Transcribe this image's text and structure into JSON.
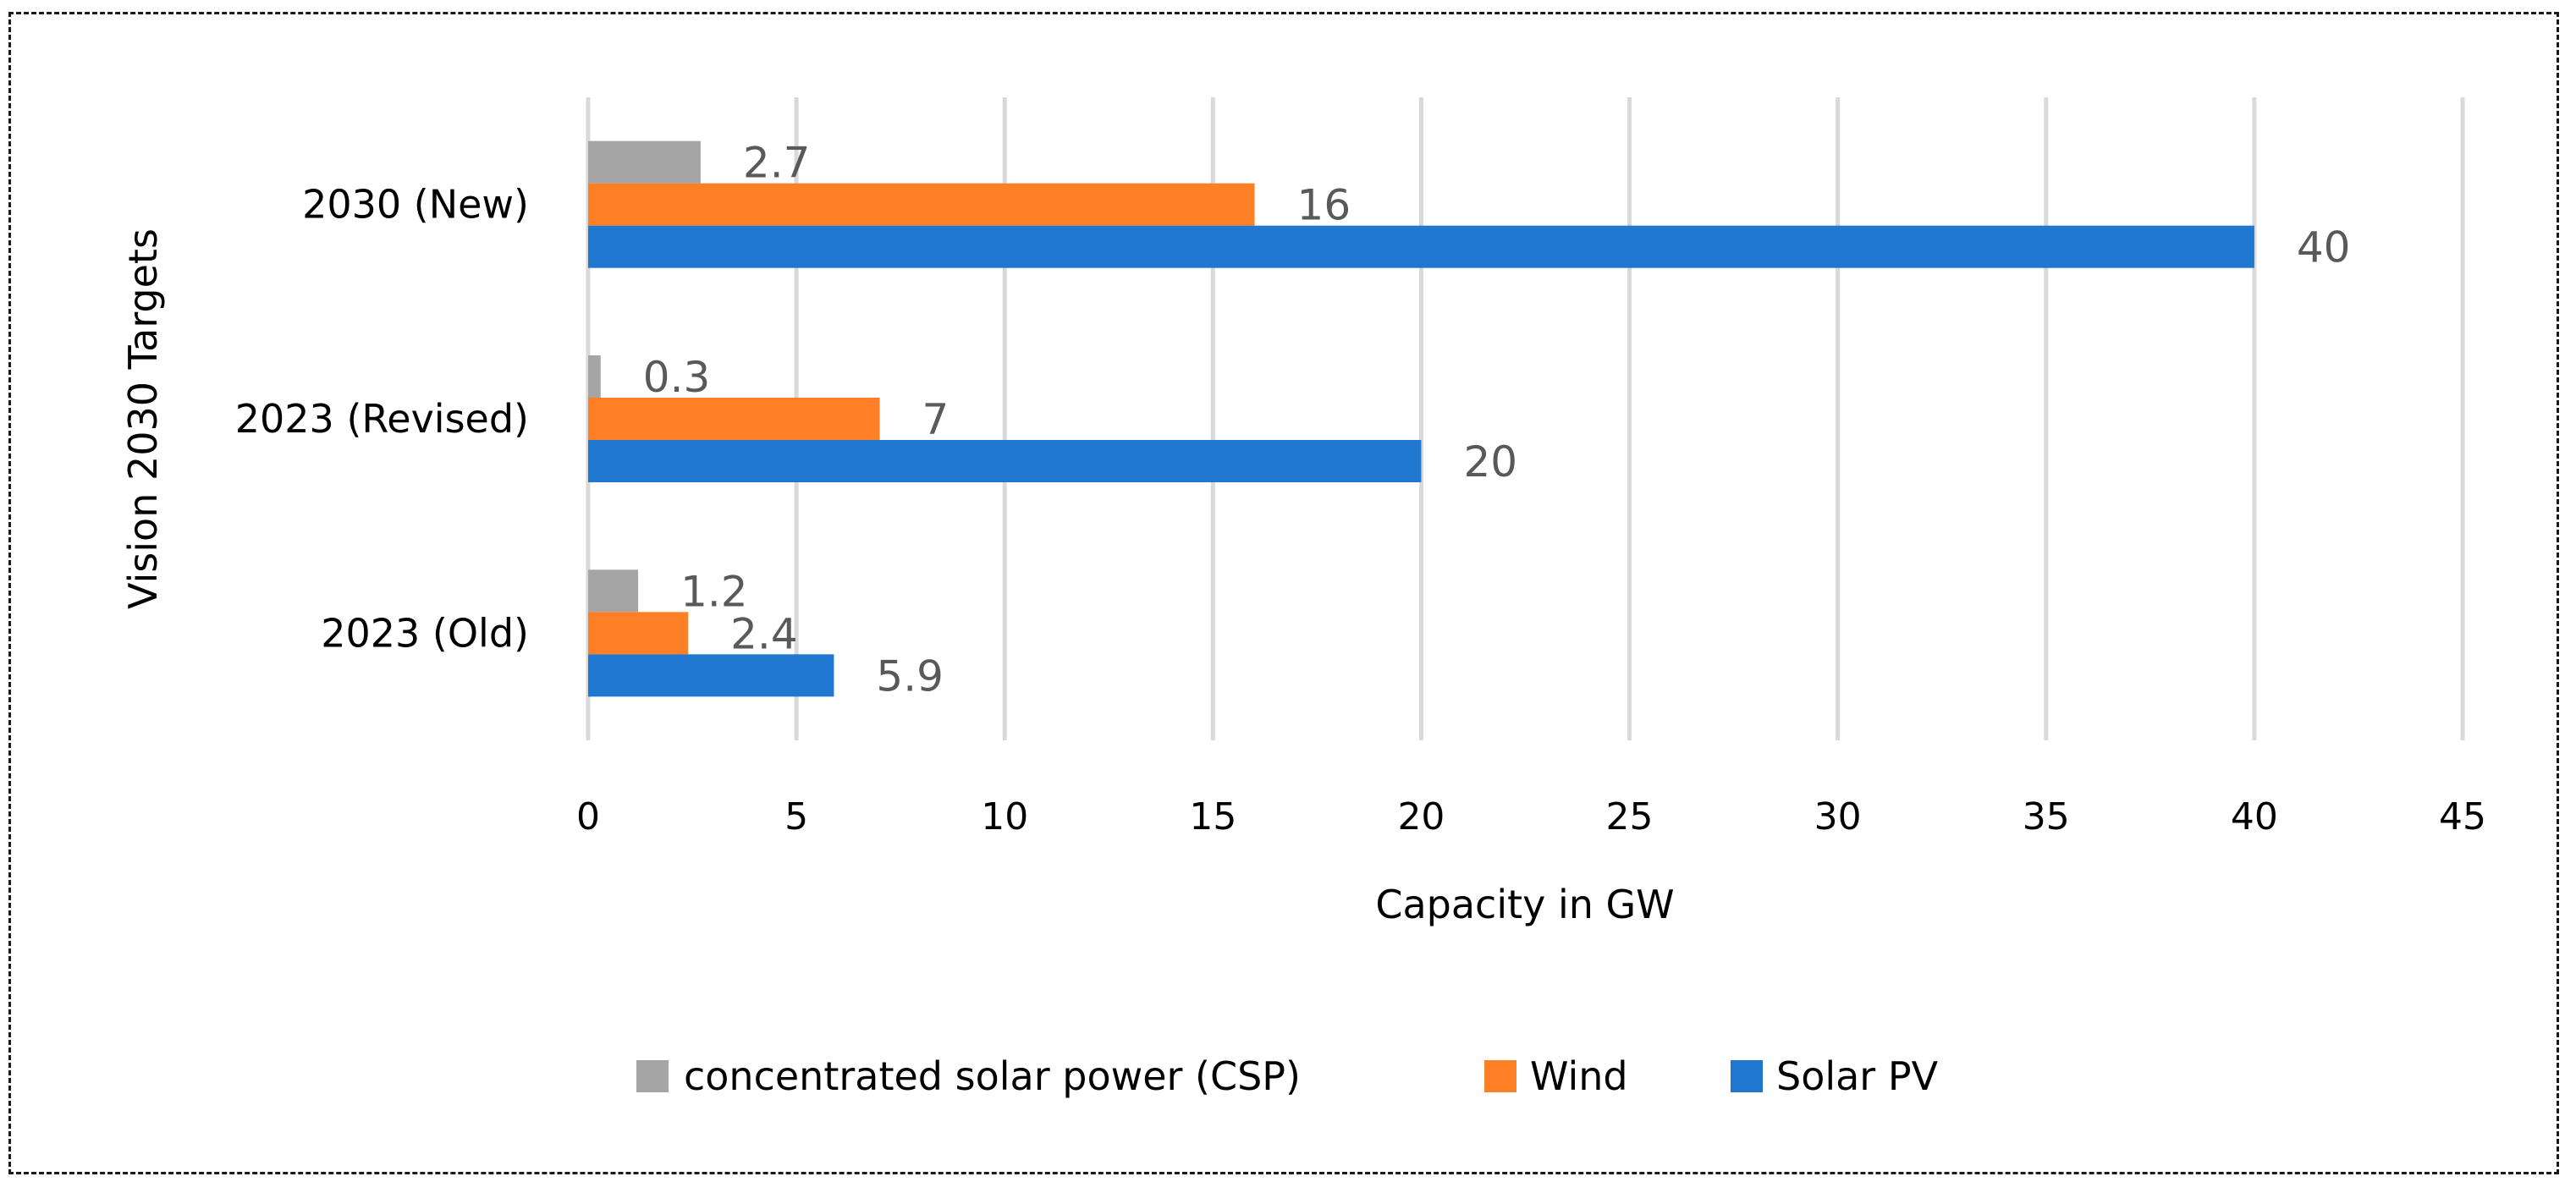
{
  "chart_data": {
    "type": "bar",
    "orientation": "horizontal",
    "categories": [
      "2023 (Old)",
      "2023 (Revised)",
      "2030 (New)"
    ],
    "series": [
      {
        "name": "concentrated solar power (CSP)",
        "color": "#a5a5a5",
        "values": [
          1.2,
          0.3,
          2.7
        ],
        "labels": [
          "1.2",
          "0.3",
          "2.7"
        ]
      },
      {
        "name": "Wind",
        "color": "#ff7f27",
        "values": [
          2.4,
          7,
          16
        ],
        "labels": [
          "2.4",
          "7",
          "16"
        ]
      },
      {
        "name": "Solar PV",
        "color": "#1f77d0",
        "values": [
          5.9,
          20,
          40
        ],
        "labels": [
          "5.9",
          "20",
          "40"
        ]
      }
    ],
    "xlabel": "Capacity in GW",
    "ylabel": "Vision 2030 Targets",
    "xlim": [
      0,
      45
    ],
    "xticks": [
      "0",
      "5",
      "10",
      "15",
      "20",
      "25",
      "30",
      "35",
      "40",
      "45"
    ],
    "grid": true,
    "legend_position": "bottom"
  }
}
